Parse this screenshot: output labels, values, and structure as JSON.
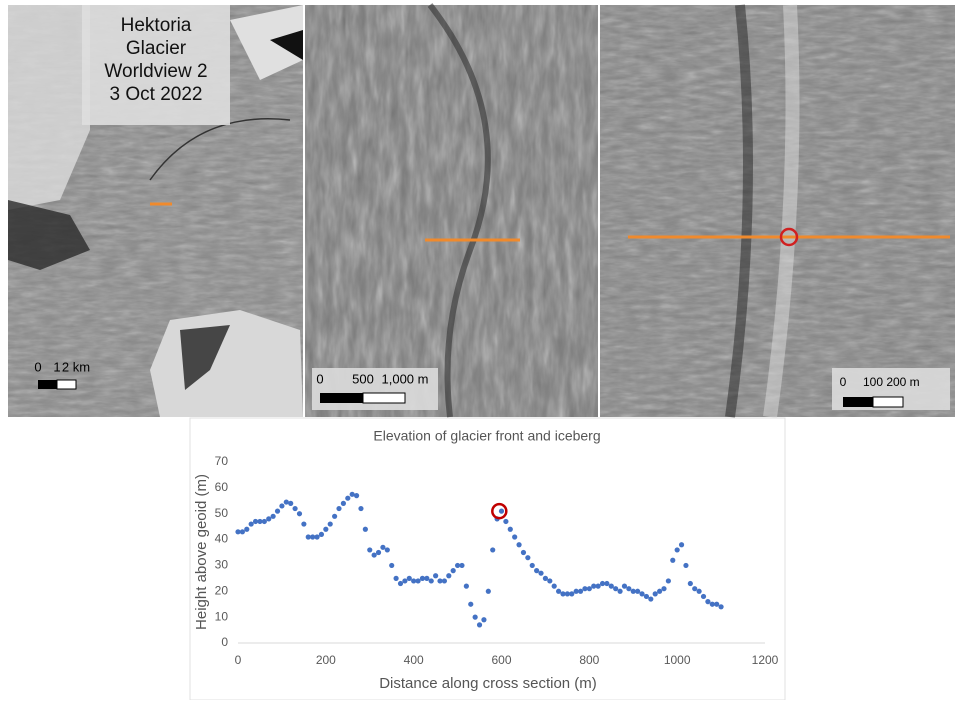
{
  "images": [
    {
      "title_lines": [
        "Hektoria",
        "Glacier",
        "Worldview 2",
        "3 Oct 2022"
      ],
      "scale_labels": [
        "0",
        "1",
        "2 km"
      ]
    },
    {
      "scale_labels": [
        "0",
        "500",
        "1,000 m"
      ]
    },
    {
      "scale_labels": [
        "0",
        "100",
        "200 m"
      ]
    }
  ],
  "chart_data": {
    "type": "scatter",
    "title": "Elevation of glacier front and iceberg",
    "x_label": "Distance along cross section (m)",
    "y_label": "Height above geoid (m)",
    "color": "#4472c4",
    "x": [
      0,
      10,
      20,
      30,
      40,
      50,
      60,
      70,
      80,
      90,
      100,
      110,
      120,
      130,
      140,
      150,
      160,
      170,
      180,
      190,
      200,
      210,
      220,
      230,
      240,
      250,
      260,
      270,
      280,
      290,
      300,
      310,
      320,
      330,
      340,
      350,
      360,
      370,
      380,
      390,
      400,
      410,
      420,
      430,
      440,
      450,
      460,
      470,
      480,
      490,
      500,
      510,
      520,
      530,
      540,
      550,
      560,
      570,
      580,
      590,
      600,
      610,
      620,
      630,
      640,
      650,
      660,
      670,
      680,
      690,
      700,
      710,
      720,
      730,
      740,
      750,
      760,
      770,
      780,
      790,
      800,
      810,
      820,
      830,
      840,
      850,
      860,
      870,
      880,
      890,
      900,
      910,
      920,
      930,
      940,
      950,
      960,
      970,
      980,
      990,
      1000,
      1010,
      1020,
      1030,
      1040,
      1050,
      1060,
      1070,
      1080,
      1090,
      1100
    ],
    "values": [
      43,
      43,
      44,
      46,
      47,
      47,
      47,
      48,
      49,
      51,
      53,
      54.5,
      54,
      52,
      50,
      46,
      41,
      41,
      41,
      42,
      44,
      46,
      49,
      52,
      54,
      56,
      57.5,
      57,
      52,
      44,
      36,
      34,
      35,
      37,
      36,
      30,
      25,
      23,
      24,
      25,
      24,
      24,
      25,
      25,
      24,
      26,
      24,
      24,
      26,
      28,
      30,
      30,
      22,
      15,
      10,
      7,
      9,
      20,
      36,
      48,
      51,
      47,
      44,
      41,
      38,
      35,
      33,
      30,
      28,
      27,
      25,
      24,
      22,
      20,
      19,
      19,
      19,
      20,
      20,
      21,
      21,
      22,
      22,
      23,
      23,
      22,
      21,
      20,
      22,
      21,
      20,
      20,
      19,
      18,
      17,
      19,
      20,
      21,
      24,
      32,
      36,
      38,
      30,
      23,
      21,
      20,
      18,
      16,
      15,
      15,
      14
    ],
    "highlight": {
      "x": 595,
      "y": 51,
      "color": "#c00000"
    },
    "xlim": [
      0,
      1200
    ],
    "xticks": [
      0,
      200,
      400,
      600,
      800,
      1000,
      1200
    ],
    "ylim": [
      0,
      70
    ],
    "yticks": [
      0,
      10,
      20,
      30,
      40,
      50,
      60,
      70
    ],
    "grid": false
  }
}
